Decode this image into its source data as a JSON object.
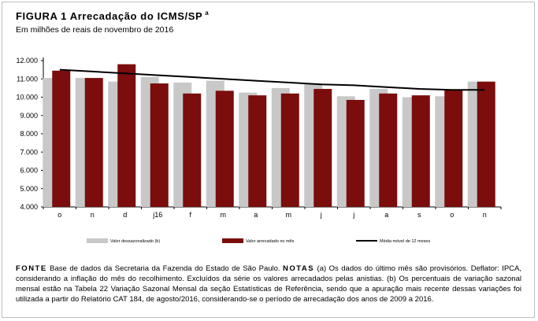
{
  "figure": {
    "title": "FIGURA 1  Arrecadação do ICMS/SP",
    "title_note": "a",
    "subtitle": "Em milhões de reais de novembro de 2016"
  },
  "chart_data": {
    "type": "bar",
    "categories": [
      "o",
      "n",
      "d",
      "j16",
      "f",
      "m",
      "a",
      "m",
      "j",
      "j",
      "a",
      "s",
      "o",
      "n"
    ],
    "ylim": [
      4000,
      12000
    ],
    "yticks": [
      4000,
      5000,
      6000,
      7000,
      8000,
      9000,
      10000,
      11000,
      12000
    ],
    "ytick_labels": [
      "4.000",
      "5.000",
      "6.000",
      "7.000",
      "8.000",
      "9.000",
      "10.000",
      "11.000",
      "12.000"
    ],
    "grid": false,
    "legend_position": "bottom",
    "series": [
      {
        "name": "Valor dessazonalizado (b)",
        "kind": "bar",
        "color": "#c8c8c8",
        "values": [
          11050,
          11050,
          10850,
          11100,
          10800,
          10900,
          10250,
          10500,
          10750,
          10050,
          10450,
          10000,
          10050,
          10850
        ]
      },
      {
        "name": "Valor arrecadado no mês",
        "kind": "bar",
        "color": "#7b0d0d",
        "values": [
          11450,
          11050,
          11800,
          10750,
          10200,
          10350,
          10100,
          10200,
          10450,
          9850,
          10200,
          10100,
          10400,
          10850
        ]
      },
      {
        "name": "Média móvel de 12 meses",
        "kind": "line",
        "color": "#000000",
        "values": [
          11500,
          11400,
          11300,
          11200,
          11100,
          11000,
          10900,
          10800,
          10700,
          10650,
          10550,
          10450,
          10400,
          10400
        ]
      }
    ]
  },
  "footer": {
    "lead1": "FONTE",
    "text1": " Base de dados da Secretaria da Fazenda do Estado de São Paulo. ",
    "lead2": "NOTAS",
    "text2": " (a) Os dados do último mês são provisórios. Deflator: IPCA, considerando a inflação do mês do recolhimento. Excluídos da série os valores arrecadados pelas anistias. (b) Os percentuais de variação sazonal mensal estão na Tabela 22 Variação Sazonal Mensal da seção Estatísticas de Referência, sendo que a apuração mais recente dessas variações foi utilizada a partir do Relatório CAT 184, de agosto/2016, considerando-se o período de arrecadação dos anos de 2009 a 2016."
  }
}
